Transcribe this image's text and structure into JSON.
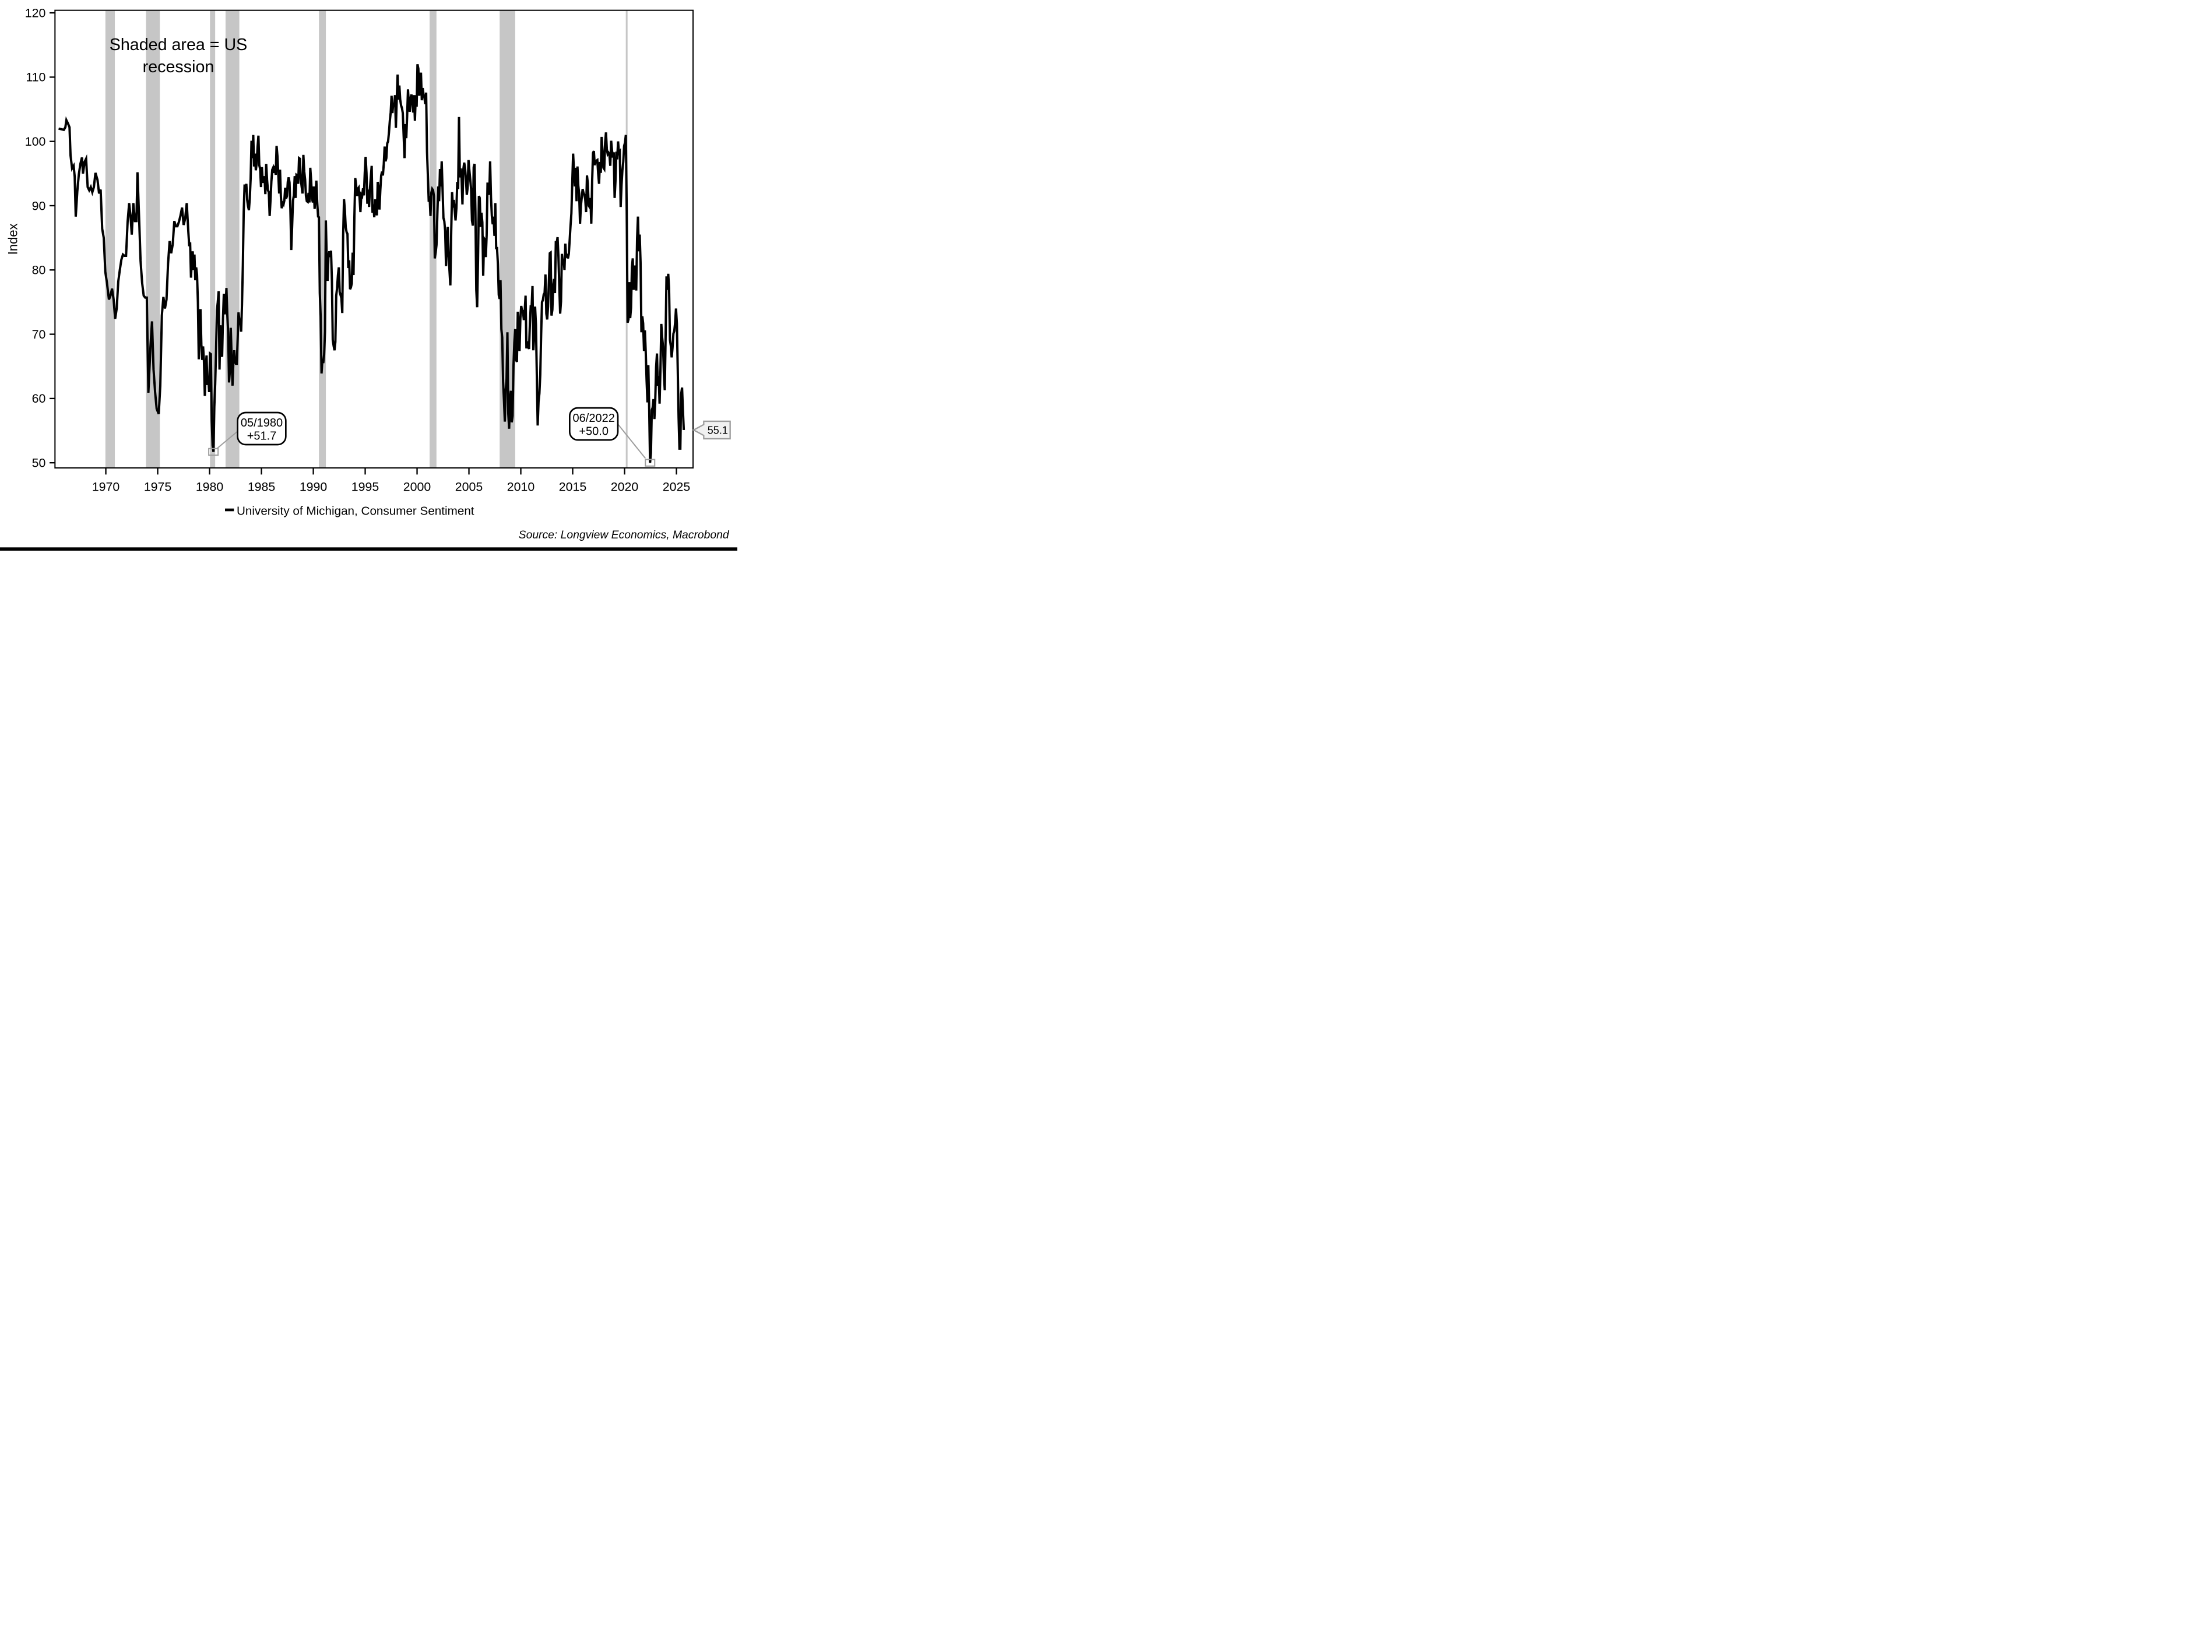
{
  "note": {
    "line1": "Shaded area = US",
    "line2": "recession",
    "color": "#5e2422"
  },
  "y_axis": {
    "label": "Index",
    "ticks": [
      50,
      60,
      70,
      80,
      90,
      100,
      110,
      120
    ]
  },
  "x_axis": {
    "ticks": [
      1970,
      1975,
      1980,
      1985,
      1990,
      1995,
      2000,
      2005,
      2010,
      2015,
      2020,
      2025
    ]
  },
  "legend": {
    "label": "University of Michigan, Consumer Sentiment",
    "swatch_color": "#000000"
  },
  "source": {
    "text": "Source: Longview Economics, Macrobond"
  },
  "annotations": {
    "callout_1980": {
      "line1": "05/1980",
      "line2": "+51.7",
      "t": 1980.371,
      "value": 51.7
    },
    "callout_2022": {
      "line1": "06/2022",
      "line2": "+50.0",
      "t": 2022.458,
      "value": 50.0
    },
    "last_value": {
      "text": "55.1",
      "value": 55.1,
      "t": 2025.708
    }
  },
  "colors": {
    "series": "#000000",
    "recession_band": "#c6c6c6",
    "axis": "#000000",
    "leader": "#9d9d9d",
    "marker": "#9d9d9d",
    "flag_fill": "#f1f1f1",
    "flag_border": "#9d9d9d"
  },
  "chart_data": {
    "type": "line",
    "title": "University of Michigan Consumer Sentiment with US recessions shaded",
    "xlabel": "",
    "ylabel": "Index",
    "grid": false,
    "legend_position": "bottom",
    "x_range": [
      1965.1,
      2026.6
    ],
    "y_range": [
      49.2,
      120.4
    ],
    "x_ticks": [
      1970,
      1975,
      1980,
      1985,
      1990,
      1995,
      2000,
      2005,
      2010,
      2015,
      2020,
      2025
    ],
    "y_ticks": [
      50,
      60,
      70,
      80,
      90,
      100,
      110,
      120
    ],
    "recessions": [
      [
        1969.96,
        1970.87
      ],
      [
        1973.87,
        1975.21
      ],
      [
        1980.04,
        1980.54
      ],
      [
        1981.54,
        1982.87
      ],
      [
        1990.54,
        1991.21
      ],
      [
        2001.21,
        2001.87
      ],
      [
        2007.96,
        2009.46
      ],
      [
        2020.12,
        2020.29
      ]
    ],
    "series": [
      {
        "name": "University of Michigan, Consumer Sentiment",
        "color": "#000000",
        "points_pre1978": [
          [
            1965.45,
            102.0
          ],
          [
            1965.7,
            101.9
          ],
          [
            1965.95,
            101.8
          ],
          [
            1966.1,
            102.2
          ],
          [
            1966.2,
            103.3
          ],
          [
            1966.35,
            102.8
          ],
          [
            1966.5,
            102.2
          ],
          [
            1966.6,
            97.8
          ],
          [
            1966.75,
            95.8
          ],
          [
            1966.9,
            96.2
          ],
          [
            1967.0,
            94.5
          ],
          [
            1967.1,
            88.3
          ],
          [
            1967.25,
            92.2
          ],
          [
            1967.4,
            94.9
          ],
          [
            1967.55,
            96.5
          ],
          [
            1967.7,
            97.5
          ],
          [
            1967.8,
            95.0
          ],
          [
            1967.95,
            96.8
          ],
          [
            1968.1,
            97.3
          ],
          [
            1968.25,
            92.9
          ],
          [
            1968.4,
            92.4
          ],
          [
            1968.55,
            92.9
          ],
          [
            1968.7,
            92.1
          ],
          [
            1968.85,
            92.9
          ],
          [
            1969.0,
            95.1
          ],
          [
            1969.2,
            94.0
          ],
          [
            1969.35,
            91.9
          ],
          [
            1969.5,
            92.5
          ],
          [
            1969.65,
            86.4
          ],
          [
            1969.8,
            85.0
          ],
          [
            1969.95,
            79.7
          ],
          [
            1970.1,
            78.1
          ],
          [
            1970.3,
            75.4
          ],
          [
            1970.45,
            76.0
          ],
          [
            1970.6,
            77.1
          ],
          [
            1970.75,
            75.4
          ],
          [
            1970.9,
            72.4
          ],
          [
            1971.05,
            74.0
          ],
          [
            1971.2,
            78.2
          ],
          [
            1971.35,
            80.0
          ],
          [
            1971.5,
            81.6
          ],
          [
            1971.65,
            82.4
          ],
          [
            1971.8,
            82.2
          ],
          [
            1971.95,
            82.2
          ],
          [
            1972.1,
            87.5
          ],
          [
            1972.25,
            90.4
          ],
          [
            1972.4,
            88.0
          ],
          [
            1972.5,
            85.5
          ],
          [
            1972.65,
            90.4
          ],
          [
            1972.8,
            87.6
          ],
          [
            1972.95,
            87.6
          ],
          [
            1973.05,
            95.2
          ],
          [
            1973.2,
            88.5
          ],
          [
            1973.35,
            81.4
          ],
          [
            1973.5,
            78.0
          ],
          [
            1973.65,
            76.0
          ],
          [
            1973.8,
            75.7
          ],
          [
            1973.95,
            75.7
          ],
          [
            1974.1,
            60.9
          ],
          [
            1974.3,
            68.0
          ],
          [
            1974.45,
            72.0
          ],
          [
            1974.6,
            64.5
          ],
          [
            1974.75,
            61.0
          ],
          [
            1974.9,
            58.4
          ],
          [
            1975.1,
            57.6
          ],
          [
            1975.25,
            62.0
          ],
          [
            1975.4,
            72.9
          ],
          [
            1975.55,
            75.8
          ],
          [
            1975.7,
            74.0
          ],
          [
            1975.85,
            75.4
          ],
          [
            1976.0,
            81.0
          ],
          [
            1976.15,
            84.5
          ],
          [
            1976.3,
            82.6
          ],
          [
            1976.45,
            84.0
          ],
          [
            1976.6,
            87.6
          ],
          [
            1976.75,
            86.8
          ],
          [
            1976.9,
            86.8
          ],
          [
            1977.05,
            87.5
          ],
          [
            1977.2,
            88.5
          ],
          [
            1977.35,
            89.7
          ],
          [
            1977.5,
            87.0
          ],
          [
            1977.65,
            88.0
          ],
          [
            1977.8,
            90.4
          ],
          [
            1977.95,
            86.0
          ]
        ],
        "monthly_from_1978": {
          "1978": [
            83.7,
            84.3,
            78.8,
            81.6,
            82.9,
            80.0,
            82.4,
            78.4,
            80.4,
            79.3,
            75.0,
            66.1
          ],
          "1979": [
            72.1,
            73.9,
            68.4,
            66.0,
            68.1,
            65.8,
            60.4,
            64.5,
            66.7,
            62.1,
            63.3,
            61.0
          ],
          "1980": [
            67.0,
            66.9,
            56.5,
            52.7,
            51.7,
            58.7,
            62.3,
            67.3,
            73.7,
            75.0,
            76.7,
            64.5
          ],
          "1981": [
            71.4,
            66.9,
            66.5,
            72.4,
            76.3,
            73.1,
            74.1,
            77.2,
            73.1,
            70.3,
            62.5,
            64.3
          ],
          "1982": [
            71.0,
            66.5,
            62.0,
            65.5,
            67.5,
            65.7,
            65.4,
            65.4,
            69.3,
            73.4,
            72.1,
            71.9
          ],
          "1983": [
            70.4,
            74.6,
            80.8,
            89.1,
            93.3,
            92.2,
            93.4,
            90.9,
            89.9,
            89.3,
            91.1,
            94.2
          ],
          "1984": [
            100.1,
            97.4,
            101.0,
            96.1,
            98.1,
            95.5,
            96.6,
            99.1,
            100.9,
            96.3,
            95.7,
            92.9
          ],
          "1985": [
            96.0,
            93.7,
            93.7,
            94.6,
            91.8,
            96.5,
            94.0,
            92.4,
            92.1,
            88.4,
            90.9,
            93.8
          ],
          "1986": [
            95.6,
            95.9,
            95.1,
            96.2,
            94.8,
            99.3,
            97.7,
            94.9,
            91.9,
            95.6,
            91.4,
            89.6
          ],
          "1987": [
            90.4,
            90.2,
            90.8,
            92.8,
            91.1,
            91.5,
            93.7,
            94.4,
            93.6,
            89.3,
            83.1,
            86.8
          ],
          "1988": [
            90.8,
            91.6,
            94.6,
            91.2,
            94.8,
            94.7,
            93.4,
            97.4,
            97.3,
            94.1,
            93.0,
            91.9
          ],
          "1989": [
            97.9,
            95.3,
            94.1,
            91.5,
            90.7,
            90.6,
            92.0,
            90.5,
            95.9,
            93.9,
            91.1,
            90.5
          ],
          "1990": [
            93.0,
            89.5,
            91.3,
            93.9,
            90.6,
            88.3,
            88.2,
            76.4,
            72.8,
            63.9,
            66.0,
            65.5
          ],
          "1991": [
            66.8,
            70.4,
            87.7,
            81.8,
            78.3,
            82.1,
            82.9,
            82.0,
            83.0,
            78.3,
            69.1,
            68.2
          ],
          "1992": [
            67.5,
            68.8,
            76.0,
            77.2,
            79.2,
            80.4,
            76.6,
            76.1,
            75.6,
            73.3,
            85.3,
            91.0
          ],
          "1993": [
            89.3,
            86.6,
            85.9,
            85.6,
            80.3,
            81.5,
            77.0,
            77.3,
            77.9,
            82.7,
            79.2,
            88.2
          ],
          "1994": [
            94.3,
            93.2,
            91.5,
            92.6,
            92.8,
            91.2,
            89.0,
            91.7,
            91.5,
            92.7,
            91.6,
            95.1
          ],
          "1995": [
            97.6,
            95.1,
            90.3,
            92.5,
            89.8,
            92.7,
            94.4,
            96.2,
            88.9,
            90.2,
            88.2,
            91.0
          ],
          "1996": [
            89.3,
            88.5,
            93.7,
            92.7,
            89.4,
            92.4,
            94.7,
            95.3,
            94.7,
            96.5,
            99.2,
            96.9
          ],
          "1997": [
            97.4,
            99.7,
            100.0,
            101.4,
            103.2,
            104.5,
            107.1,
            104.4,
            106.0,
            105.6,
            107.2,
            102.1
          ],
          "1998": [
            106.6,
            110.4,
            106.5,
            108.7,
            106.5,
            105.6,
            105.2,
            104.4,
            100.9,
            97.4,
            102.7,
            100.5
          ],
          "1999": [
            103.9,
            108.1,
            105.7,
            104.6,
            106.8,
            107.3,
            106.0,
            104.5,
            107.2,
            103.2,
            107.2,
            105.4
          ],
          "2000": [
            112.0,
            111.3,
            107.1,
            109.2,
            110.7,
            106.4,
            108.3,
            107.3,
            106.8,
            105.8,
            107.6,
            98.4
          ],
          "2001": [
            94.7,
            90.6,
            91.5,
            88.4,
            92.0,
            92.6,
            92.4,
            91.5,
            81.8,
            82.7,
            83.9,
            88.8
          ],
          "2002": [
            93.0,
            90.7,
            95.7,
            93.0,
            96.9,
            92.4,
            88.1,
            87.6,
            86.1,
            80.6,
            84.2,
            86.7
          ],
          "2003": [
            82.4,
            79.9,
            77.6,
            86.0,
            92.1,
            89.7,
            90.9,
            89.3,
            87.7,
            89.6,
            93.7,
            92.6
          ],
          "2004": [
            103.8,
            94.4,
            95.8,
            94.2,
            90.2,
            95.6,
            96.7,
            95.9,
            94.2,
            91.7,
            92.8,
            97.1
          ],
          "2005": [
            95.5,
            94.1,
            92.6,
            87.7,
            86.9,
            96.0,
            96.5,
            89.1,
            76.9,
            74.2,
            81.6,
            91.5
          ],
          "2006": [
            91.2,
            86.7,
            88.9,
            87.4,
            79.1,
            84.9,
            84.7,
            82.0,
            85.4,
            93.6,
            92.1,
            91.7
          ],
          "2007": [
            96.9,
            91.3,
            88.4,
            87.1,
            88.3,
            85.3,
            90.4,
            83.4,
            83.4,
            80.9,
            76.1,
            75.5
          ],
          "2008": [
            78.4,
            70.8,
            69.5,
            62.6,
            59.8,
            56.4,
            61.2,
            63.0,
            70.3,
            57.6,
            55.3,
            60.1
          ],
          "2009": [
            61.2,
            56.3,
            57.3,
            65.1,
            68.7,
            70.8,
            66.0,
            65.7,
            73.5,
            70.6,
            67.4,
            72.5
          ],
          "2010": [
            74.4,
            73.6,
            73.6,
            72.2,
            73.6,
            76.0,
            67.8,
            68.9,
            68.2,
            67.7,
            71.6,
            74.5
          ],
          "2011": [
            74.2,
            77.5,
            67.5,
            69.8,
            74.3,
            71.5,
            63.7,
            55.8,
            59.5,
            60.8,
            63.7,
            69.9
          ],
          "2012": [
            75.0,
            75.3,
            76.2,
            76.4,
            79.3,
            73.2,
            72.3,
            74.3,
            78.3,
            82.6,
            82.7,
            72.9
          ],
          "2013": [
            73.8,
            77.6,
            78.6,
            76.4,
            84.5,
            84.1,
            85.1,
            82.1,
            77.5,
            73.2,
            75.1,
            82.5
          ],
          "2014": [
            81.2,
            81.6,
            80.0,
            84.1,
            81.9,
            82.5,
            81.8,
            82.5,
            84.6,
            86.9,
            88.8,
            93.6
          ],
          "2015": [
            98.1,
            95.4,
            93.0,
            95.9,
            90.7,
            96.1,
            93.1,
            91.9,
            87.2,
            90.0,
            91.3,
            92.6
          ],
          "2016": [
            92.0,
            91.7,
            91.0,
            89.0,
            94.7,
            93.5,
            90.0,
            89.8,
            91.2,
            87.2,
            93.8,
            98.2
          ],
          "2017": [
            98.5,
            96.3,
            96.9,
            97.0,
            97.1,
            95.0,
            93.4,
            96.8,
            95.1,
            100.7,
            98.5,
            95.9
          ],
          "2018": [
            95.7,
            99.7,
            101.4,
            98.8,
            98.0,
            98.2,
            97.9,
            96.2,
            100.1,
            98.6,
            97.5,
            98.3
          ],
          "2019": [
            91.2,
            93.8,
            98.4,
            97.2,
            100.0,
            98.2,
            98.4,
            89.8,
            93.2,
            95.5,
            96.8,
            99.3
          ],
          "2020": [
            99.8,
            101.0,
            89.1,
            71.8,
            72.3,
            78.1,
            72.5,
            74.1,
            80.4,
            81.8,
            76.9,
            80.7
          ],
          "2021": [
            79.0,
            76.8,
            84.9,
            88.3,
            82.9,
            85.5,
            81.2,
            70.3,
            72.8,
            71.7,
            67.4,
            70.6
          ],
          "2022": [
            67.2,
            62.8,
            59.4,
            65.2,
            58.4,
            50.0,
            51.5,
            58.2,
            58.6,
            59.9,
            56.8,
            59.7
          ],
          "2023": [
            64.9,
            67.0,
            62.0,
            63.5,
            59.2,
            64.4,
            71.6,
            69.5,
            68.1,
            63.8,
            61.3,
            69.7
          ],
          "2024": [
            79.0,
            76.9,
            79.4,
            77.2,
            69.1,
            68.2,
            66.4,
            67.9,
            70.1,
            70.5,
            71.8,
            74.0
          ],
          "2025": [
            71.7,
            64.7,
            57.0,
            52.2,
            52.2,
            60.7,
            61.7,
            58.2,
            55.1
          ]
        }
      }
    ]
  }
}
